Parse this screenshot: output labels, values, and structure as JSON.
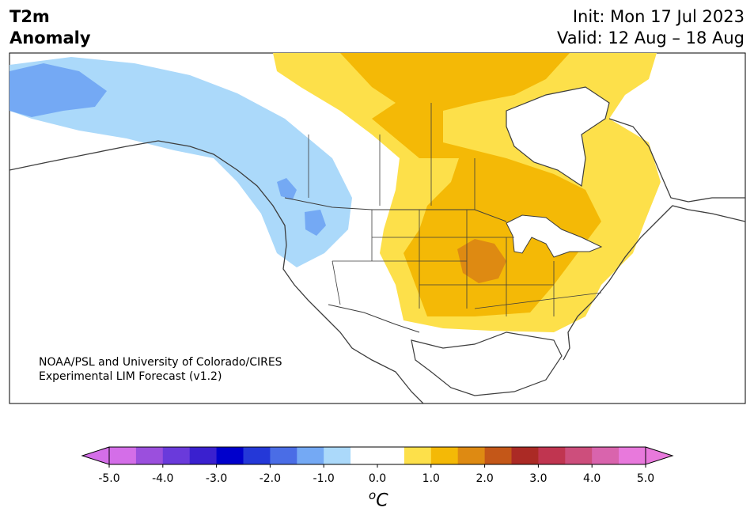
{
  "title": {
    "variable": "T2m",
    "subtitle": "Anomaly",
    "init": "Init: Mon 17 Jul 2023",
    "valid": "Valid: 12 Aug – 18 Aug"
  },
  "credit": {
    "line1": "NOAA/PSL and University of Colorado/CIRES",
    "line2": "Experimental LIM Forecast (v1.2)"
  },
  "colorbar": {
    "unit_base": "C",
    "unit_sup": "o",
    "ticks": [
      "-5.0",
      "-4.0",
      "-3.0",
      "-2.0",
      "-1.0",
      "0.0",
      "1.0",
      "2.0",
      "3.0",
      "4.0",
      "5.0"
    ],
    "colors": [
      "#d46ee8",
      "#9b4fdd",
      "#6a3adb",
      "#3a20cf",
      "#0000cc",
      "#2438d8",
      "#4a6de6",
      "#74a9f4",
      "#abd9fa",
      "#ffffff",
      "#ffffff",
      "#fde04a",
      "#f4b906",
      "#de8a12",
      "#c45718",
      "#ab2a25",
      "#c03550",
      "#cd4e7c",
      "#d964ad",
      "#e879dc"
    ],
    "under_color": "#d46ee8",
    "over_color": "#e879dc"
  },
  "map_legend_colors": {
    "ocean": "#ffffff",
    "coast": "#3d3d3d",
    "light_blue": "#abd9fa",
    "mid_blue": "#74a9f4",
    "yellow": "#fde04a",
    "orange": "#f4b906",
    "dark_orange": "#de8a12"
  }
}
